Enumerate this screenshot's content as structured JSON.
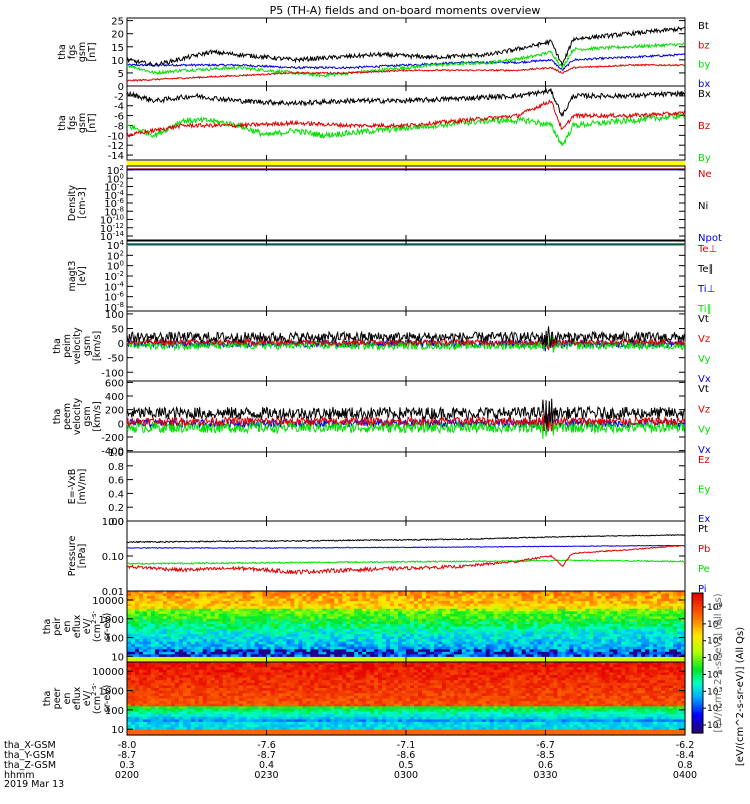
{
  "title": "P5 (TH-A) fields and on-board moments overview",
  "colors": {
    "black": "#000000",
    "red": "#e00000",
    "green": "#00e000",
    "blue": "#0000e0",
    "yellow": "#ffff00"
  },
  "chart_data": [
    {
      "type": "line",
      "name": "fgs-btotal",
      "ylabel": [
        "tha",
        "fgs",
        "gsm",
        "[nT]"
      ],
      "yticks": [
        "25",
        "20",
        "15",
        "10",
        "5",
        "0"
      ],
      "ylim": [
        0,
        26
      ],
      "legend": [
        {
          "label": "Bt",
          "color": "black"
        },
        {
          "label": "bz",
          "color": "red"
        },
        {
          "label": "by",
          "color": "green"
        },
        {
          "label": "bx",
          "color": "blue"
        }
      ],
      "series": [
        {
          "name": "Bt",
          "color": "black",
          "x": [
            0,
            0.05,
            0.15,
            0.3,
            0.45,
            0.55,
            0.65,
            0.72,
            0.76,
            0.78,
            0.8,
            0.85,
            0.9,
            1
          ],
          "y": [
            10,
            8,
            13,
            10,
            12,
            11,
            12,
            15,
            17,
            8,
            18,
            19,
            20,
            22
          ],
          "noise": 0.8
        },
        {
          "name": "bz",
          "color": "red",
          "x": [
            0,
            0.1,
            0.2,
            0.3,
            0.4,
            0.5,
            0.6,
            0.7,
            0.76,
            0.78,
            0.8,
            0.9,
            1
          ],
          "y": [
            2,
            3,
            4,
            5,
            5,
            6,
            6,
            6,
            7,
            5,
            7,
            8,
            8
          ],
          "noise": 0.3
        },
        {
          "name": "by",
          "color": "green",
          "x": [
            0,
            0.05,
            0.1,
            0.2,
            0.3,
            0.35,
            0.45,
            0.55,
            0.65,
            0.72,
            0.76,
            0.78,
            0.8,
            0.9,
            1
          ],
          "y": [
            8,
            5,
            6,
            7,
            5,
            4,
            6,
            8,
            9,
            11,
            13,
            7,
            14,
            15,
            16
          ],
          "noise": 0.6
        },
        {
          "name": "bx",
          "color": "blue",
          "x": [
            0,
            0.1,
            0.2,
            0.3,
            0.4,
            0.5,
            0.6,
            0.7,
            0.76,
            0.78,
            0.8,
            0.9,
            1
          ],
          "y": [
            8,
            8,
            8,
            7,
            7,
            8,
            9,
            9,
            10,
            6,
            10,
            11,
            12
          ],
          "noise": 0.4
        }
      ]
    },
    {
      "type": "line",
      "name": "fgs-components",
      "ylabel": [
        "tha",
        "fgs",
        "gsm",
        "[nT]"
      ],
      "yticks": [
        "-2",
        "-4",
        "-6",
        "-8",
        "-10",
        "-12",
        "-14"
      ],
      "ylim": [
        -15,
        0
      ],
      "legend": [
        {
          "label": "Bx",
          "color": "black"
        },
        {
          "label": "Bz",
          "color": "red"
        },
        {
          "label": "By",
          "color": "green"
        }
      ],
      "series": [
        {
          "name": "Bx",
          "color": "black",
          "x": [
            0,
            0.05,
            0.12,
            0.2,
            0.3,
            0.4,
            0.5,
            0.6,
            0.7,
            0.76,
            0.78,
            0.8,
            0.9,
            1
          ],
          "y": [
            -1.5,
            -3,
            -2,
            -3,
            -3.5,
            -3,
            -3,
            -2.5,
            -2,
            -1,
            -6,
            -2,
            -2,
            -1.5
          ],
          "noise": 0.5
        },
        {
          "name": "Bz",
          "color": "red",
          "x": [
            0,
            0.1,
            0.2,
            0.3,
            0.4,
            0.5,
            0.6,
            0.7,
            0.76,
            0.78,
            0.8,
            0.9,
            1
          ],
          "y": [
            -10,
            -8,
            -8,
            -7.5,
            -8,
            -8,
            -7,
            -6,
            -3,
            -9,
            -6,
            -6,
            -5.5
          ],
          "noise": 0.4
        },
        {
          "name": "By",
          "color": "green",
          "x": [
            0,
            0.05,
            0.1,
            0.15,
            0.2,
            0.25,
            0.3,
            0.35,
            0.45,
            0.55,
            0.65,
            0.72,
            0.76,
            0.78,
            0.8,
            0.9,
            1
          ],
          "y": [
            -8,
            -10,
            -7,
            -7,
            -8,
            -10,
            -9,
            -10,
            -9,
            -8,
            -7,
            -7,
            -8,
            -12,
            -8,
            -7,
            -6
          ],
          "noise": 0.6
        }
      ]
    },
    {
      "type": "line",
      "name": "density",
      "ylabel": [
        "Density",
        "[cm-3]"
      ],
      "yticks": [
        "10^2",
        "10^0",
        "10^-2",
        "10^-4",
        "10^-6",
        "10^-8",
        "10^-10",
        "10^-12",
        "10^-14"
      ],
      "legend": [
        {
          "label": "Ne",
          "color": "red"
        },
        {
          "label": "Ni",
          "color": "black"
        },
        {
          "label": "Npot",
          "color": "blue"
        }
      ],
      "flat_at": [
        1,
        1,
        1
      ]
    },
    {
      "type": "line",
      "name": "temperature",
      "ylabel": [
        "magt3",
        "[eV]"
      ],
      "yticks": [
        "10^4",
        "10^2",
        "10^0",
        "10^-2",
        "10^-4",
        "10^-6",
        "10^-8"
      ],
      "legend": [
        {
          "label": "Te⊥",
          "color": "red"
        },
        {
          "label": "Te∥",
          "color": "black"
        },
        {
          "label": "Ti⊥",
          "color": "blue"
        },
        {
          "label": "Ti∥",
          "color": "green"
        }
      ],
      "flat_at": [
        1,
        1,
        1,
        1
      ]
    },
    {
      "type": "line",
      "name": "peim-velocity",
      "ylabel": [
        "tha",
        "peim",
        "velocity",
        "gsm",
        "[km/s]"
      ],
      "yticks": [
        "100",
        "50",
        "0",
        "-50",
        "-100"
      ],
      "ylim": [
        -130,
        110
      ],
      "legend": [
        {
          "label": "Vt",
          "color": "black"
        },
        {
          "label": "Vz",
          "color": "red"
        },
        {
          "label": "Vy",
          "color": "green"
        },
        {
          "label": "Vx",
          "color": "blue"
        }
      ],
      "series": [
        {
          "name": "Vt",
          "color": "black",
          "base": 20,
          "noise": 18
        },
        {
          "name": "Vz",
          "color": "red",
          "base": 3,
          "noise": 10
        },
        {
          "name": "Vy",
          "color": "green",
          "base": -8,
          "noise": 14
        },
        {
          "name": "Vx",
          "color": "blue",
          "base": -2,
          "noise": 12
        }
      ]
    },
    {
      "type": "line",
      "name": "peem-velocity",
      "ylabel": [
        "tha",
        "peem",
        "velocity",
        "gsm",
        "[km/s]"
      ],
      "yticks": [
        "600",
        "400",
        "200",
        "0",
        "-200",
        "-400"
      ],
      "ylim": [
        -420,
        620
      ],
      "legend": [
        {
          "label": "Vt",
          "color": "black"
        },
        {
          "label": "Vz",
          "color": "red"
        },
        {
          "label": "Vy",
          "color": "green"
        },
        {
          "label": "Vx",
          "color": "blue"
        }
      ],
      "series": [
        {
          "name": "Vt",
          "color": "black",
          "base": 150,
          "noise": 90
        },
        {
          "name": "Vz",
          "color": "red",
          "base": 30,
          "noise": 60
        },
        {
          "name": "Vy",
          "color": "green",
          "base": -60,
          "noise": 80
        },
        {
          "name": "Vx",
          "color": "blue",
          "base": 0,
          "noise": 60
        }
      ]
    },
    {
      "type": "line",
      "name": "efield",
      "ylabel": [
        "E=-VxB",
        "[mV/m]"
      ],
      "yticks": [
        "1.0",
        "0.8",
        "0.6",
        "0.4",
        "0.2",
        "0.0"
      ],
      "ylim": [
        0,
        1
      ],
      "legend": [
        {
          "label": "Ez",
          "color": "red"
        },
        {
          "label": "Ey",
          "color": "green"
        },
        {
          "label": "Ex",
          "color": "blue"
        }
      ],
      "series": []
    },
    {
      "type": "line",
      "name": "pressure",
      "ylabel": [
        "Pressure",
        "[nPa]"
      ],
      "yticks": [
        "1.00",
        "0.10",
        "0.01"
      ],
      "yscale": "log",
      "ylim": [
        0.01,
        1.0
      ],
      "legend": [
        {
          "label": "Pt",
          "color": "black"
        },
        {
          "label": "Pb",
          "color": "red"
        },
        {
          "label": "Pe",
          "color": "green"
        },
        {
          "label": "Pi",
          "color": "blue"
        }
      ],
      "series": [
        {
          "name": "Pt",
          "color": "black",
          "x": [
            0,
            0.3,
            0.6,
            0.8,
            1
          ],
          "y": [
            0.25,
            0.27,
            0.3,
            0.36,
            0.4
          ],
          "noise": 0.01
        },
        {
          "name": "Pb",
          "color": "red",
          "x": [
            0,
            0.1,
            0.2,
            0.3,
            0.4,
            0.5,
            0.6,
            0.7,
            0.76,
            0.78,
            0.8,
            0.9,
            1
          ],
          "y": [
            0.05,
            0.04,
            0.045,
            0.035,
            0.04,
            0.045,
            0.05,
            0.07,
            0.1,
            0.05,
            0.12,
            0.15,
            0.2
          ],
          "noise": 0.005
        },
        {
          "name": "Pe",
          "color": "green",
          "x": [
            0,
            0.3,
            0.6,
            0.8,
            1
          ],
          "y": [
            0.06,
            0.065,
            0.07,
            0.075,
            0.07
          ],
          "noise": 0.003
        },
        {
          "name": "Pi",
          "color": "blue",
          "x": [
            0,
            0.3,
            0.6,
            0.8,
            1
          ],
          "y": [
            0.17,
            0.17,
            0.18,
            0.19,
            0.2
          ],
          "noise": 0.004
        }
      ]
    },
    {
      "type": "heatmap",
      "name": "peir-eflux",
      "ylabel": [
        "tha",
        "peir",
        "en",
        "eflux",
        "eV/",
        "(cm^2-s-",
        "sr-eV)"
      ],
      "yticks": [
        "10000",
        "1000",
        "100",
        "10"
      ],
      "yscale": "log",
      "ylim": [
        5,
        30000
      ]
    },
    {
      "type": "heatmap",
      "name": "peer-eflux",
      "ylabel": [
        "tha",
        "peer",
        "en",
        "eflux",
        "eV/",
        "(cm^2-s-",
        "sr-eV)"
      ],
      "yticks": [
        "10000",
        "1000",
        "100",
        "10"
      ],
      "yscale": "log",
      "ylim": [
        5,
        30000
      ]
    }
  ],
  "colorbar": {
    "ticks": [
      "10^8",
      "10^7",
      "10^6",
      "10^5",
      "10^4",
      "10^3",
      "10^2",
      "10^1"
    ],
    "label": "[eV/(cm^2-s-sr-eV)] (All Qs)",
    "overlay": "[eV/(cm^2-s-sr-eV)] (All Qs)"
  },
  "xaxis": {
    "rows": [
      {
        "label": "tha_X-GSM",
        "values": [
          "-8.0",
          "-7.6",
          "-7.1",
          "-6.7",
          "-6.2"
        ]
      },
      {
        "label": "tha_Y-GSM",
        "values": [
          "-8.7",
          "-8.7",
          "-8.6",
          "-8.5",
          "-8.4"
        ]
      },
      {
        "label": "tha_Z-GSM",
        "values": [
          "0.3",
          "0.4",
          "0.5",
          "0.6",
          "0.8"
        ]
      },
      {
        "label": "hhmm",
        "values": [
          "0200",
          "0230",
          "0300",
          "0330",
          "0400"
        ]
      }
    ],
    "date": "2019 Mar 13"
  }
}
